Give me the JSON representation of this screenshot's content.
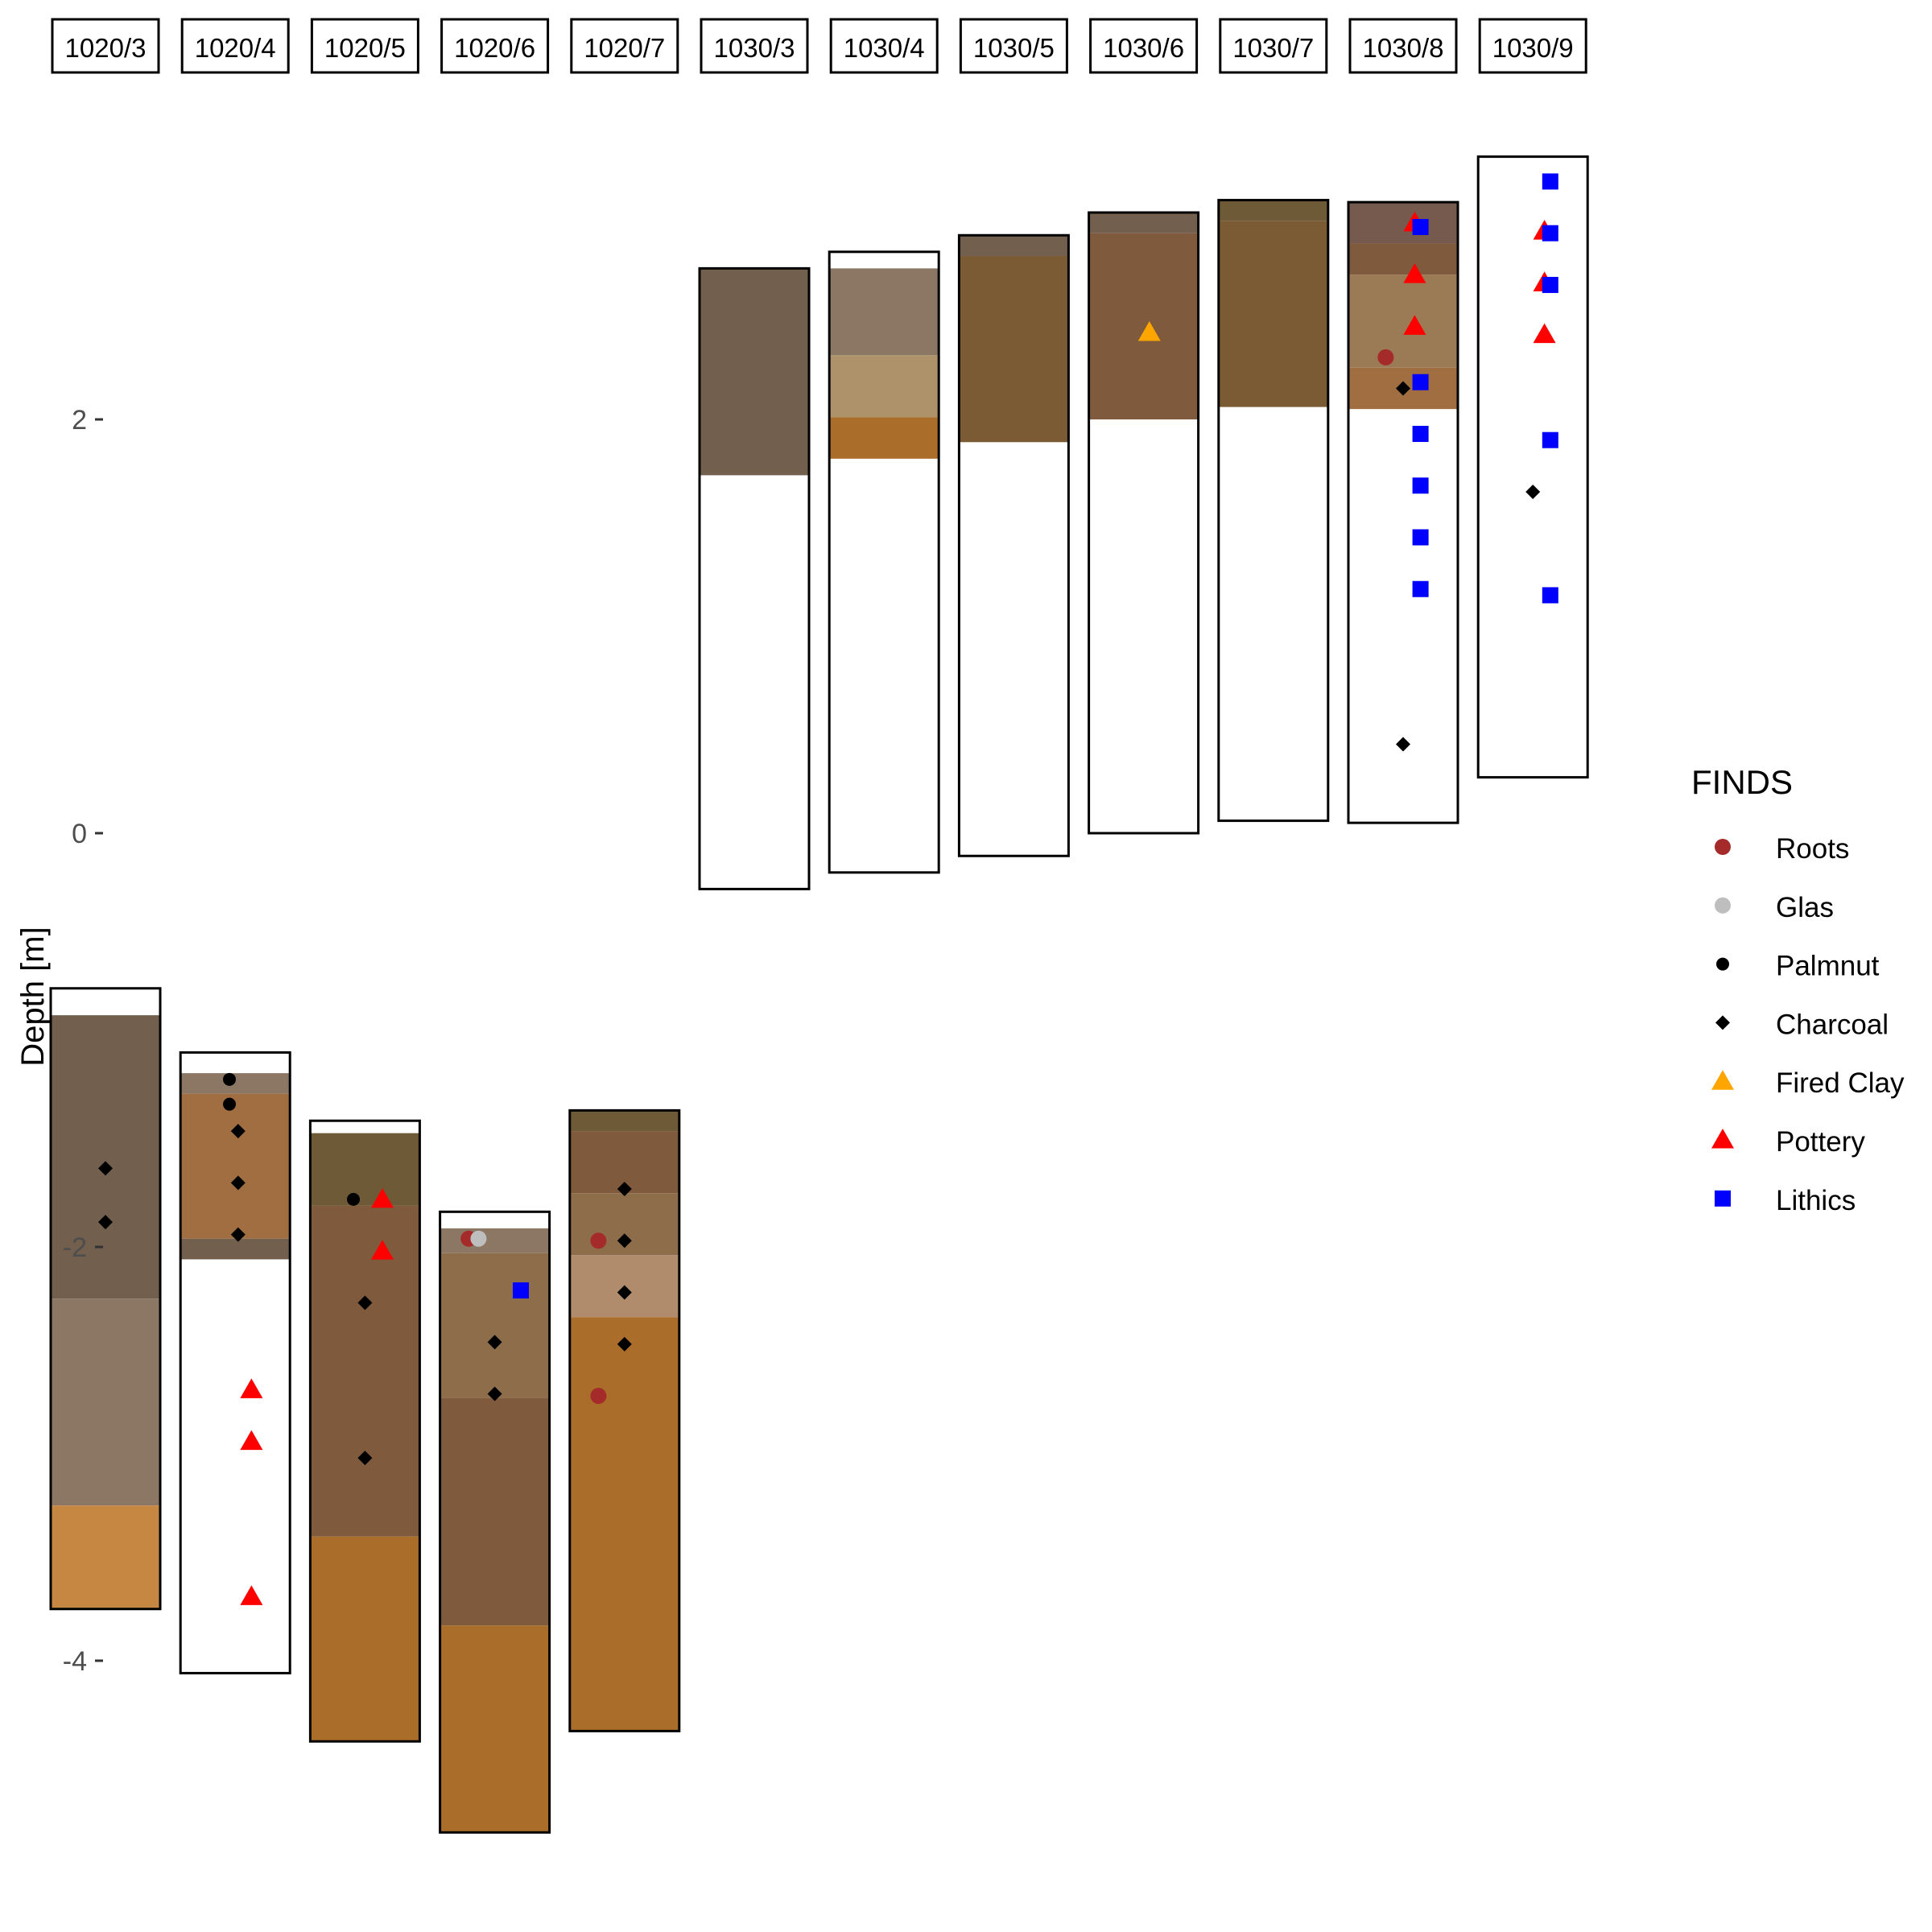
{
  "chart_data": {
    "type": "stratigraphic-column",
    "title": "",
    "xlabel": "",
    "ylabel": "Depth [m]",
    "ylim": [
      -5.1,
      3.6
    ],
    "yticks": [
      2,
      0,
      -2,
      -4
    ],
    "grid": false,
    "legend_position": "right",
    "colors": {
      "Roots": "#a52a2a",
      "Glas": "#bebebe",
      "Palmnut": "#000000",
      "Charcoal": "#000000",
      "Fired Clay": "#ffa500",
      "Pottery": "#ff0000",
      "Lithics": "#0000ff"
    },
    "legend": {
      "title": "FINDS",
      "items": [
        {
          "label": "Roots",
          "shape": "circle"
        },
        {
          "label": "Glas",
          "shape": "circle"
        },
        {
          "label": "Palmnut",
          "shape": "dot"
        },
        {
          "label": "Charcoal",
          "shape": "diamond"
        },
        {
          "label": "Fired Clay",
          "shape": "triangle"
        },
        {
          "label": "Pottery",
          "shape": "triangle"
        },
        {
          "label": "Lithics",
          "shape": "square"
        }
      ]
    },
    "profiles": [
      {
        "name": "1020/3",
        "top": -0.75,
        "bottom": -3.75,
        "layers": [
          {
            "from": -0.88,
            "to": -2.25,
            "color": "#725f4d"
          },
          {
            "from": -2.25,
            "to": -3.25,
            "color": "#8b7764"
          },
          {
            "from": -3.25,
            "to": -3.75,
            "color": "#c68742"
          }
        ],
        "finds": [
          {
            "type": "Charcoal",
            "depth": -1.62,
            "offset": 0
          },
          {
            "type": "Charcoal",
            "depth": -1.88,
            "offset": 0
          }
        ]
      },
      {
        "name": "1020/4",
        "top": -1.06,
        "bottom": -4.06,
        "layers": [
          {
            "from": -1.16,
            "to": -1.26,
            "color": "#8b7764"
          },
          {
            "from": -1.26,
            "to": -1.96,
            "color": "#a06e40"
          },
          {
            "from": -1.96,
            "to": -2.06,
            "color": "#725f4d"
          }
        ],
        "finds": [
          {
            "type": "Palmnut",
            "depth": -1.19,
            "offset": -0.1
          },
          {
            "type": "Palmnut",
            "depth": -1.31,
            "offset": -0.1
          },
          {
            "type": "Charcoal",
            "depth": -1.44,
            "offset": 0.05
          },
          {
            "type": "Charcoal",
            "depth": -1.69,
            "offset": 0.05
          },
          {
            "type": "Charcoal",
            "depth": -1.94,
            "offset": 0.05
          },
          {
            "type": "Pottery",
            "depth": -2.69,
            "offset": 0.28
          },
          {
            "type": "Pottery",
            "depth": -2.94,
            "offset": 0.28
          },
          {
            "type": "Pottery",
            "depth": -3.69,
            "offset": 0.28
          }
        ]
      },
      {
        "name": "1020/5",
        "top": -1.39,
        "bottom": -4.39,
        "layers": [
          {
            "from": -1.45,
            "to": -1.8,
            "color": "#6e5a36"
          },
          {
            "from": -1.8,
            "to": -3.4,
            "color": "#7f5a3c"
          },
          {
            "from": -3.4,
            "to": -4.39,
            "color": "#aa6e2a"
          }
        ],
        "finds": [
          {
            "type": "Palmnut",
            "depth": -1.77,
            "offset": -0.2
          },
          {
            "type": "Pottery",
            "depth": -1.77,
            "offset": 0.3
          },
          {
            "type": "Pottery",
            "depth": -2.02,
            "offset": 0.3
          },
          {
            "type": "Charcoal",
            "depth": -2.27,
            "offset": 0
          },
          {
            "type": "Charcoal",
            "depth": -3.02,
            "offset": 0
          }
        ]
      },
      {
        "name": "1020/6",
        "top": -1.83,
        "bottom": -4.83,
        "layers": [
          {
            "from": -1.91,
            "to": -2.03,
            "color": "#8b7764"
          },
          {
            "from": -2.03,
            "to": -2.73,
            "color": "#8e6e4a"
          },
          {
            "from": -2.73,
            "to": -3.83,
            "color": "#7f5a3c"
          },
          {
            "from": -3.83,
            "to": -4.83,
            "color": "#aa6e2a"
          }
        ],
        "finds": [
          {
            "type": "Roots",
            "depth": -1.96,
            "offset": -0.45
          },
          {
            "type": "Glas",
            "depth": -1.96,
            "offset": -0.28
          },
          {
            "type": "Lithics",
            "depth": -2.21,
            "offset": 0.45
          },
          {
            "type": "Charcoal",
            "depth": -2.46,
            "offset": 0
          },
          {
            "type": "Charcoal",
            "depth": -2.71,
            "offset": 0
          }
        ]
      },
      {
        "name": "1020/7",
        "top": -1.34,
        "bottom": -4.34,
        "layers": [
          {
            "from": -1.34,
            "to": -1.44,
            "color": "#6e5a36"
          },
          {
            "from": -1.44,
            "to": -1.74,
            "color": "#7f5a3c"
          },
          {
            "from": -1.74,
            "to": -2.04,
            "color": "#8e6e4a"
          },
          {
            "from": -2.04,
            "to": -2.34,
            "color": "#b08b6c"
          },
          {
            "from": -2.34,
            "to": -4.34,
            "color": "#aa6e2a"
          }
        ],
        "finds": [
          {
            "type": "Charcoal",
            "depth": -1.72,
            "offset": 0
          },
          {
            "type": "Roots",
            "depth": -1.97,
            "offset": -0.45
          },
          {
            "type": "Charcoal",
            "depth": -1.97,
            "offset": 0
          },
          {
            "type": "Charcoal",
            "depth": -2.22,
            "offset": 0
          },
          {
            "type": "Charcoal",
            "depth": -2.47,
            "offset": 0
          },
          {
            "type": "Roots",
            "depth": -2.72,
            "offset": -0.45
          }
        ]
      },
      {
        "name": "1030/3",
        "top": 2.73,
        "bottom": -0.27,
        "layers": [
          {
            "from": 2.73,
            "to": 1.73,
            "color": "#725f4d"
          }
        ],
        "finds": []
      },
      {
        "name": "1030/4",
        "top": 2.81,
        "bottom": -0.19,
        "layers": [
          {
            "from": 2.73,
            "to": 2.31,
            "color": "#8b7764"
          },
          {
            "from": 2.31,
            "to": 2.01,
            "color": "#ae926a"
          },
          {
            "from": 2.01,
            "to": 1.81,
            "color": "#aa6e2a"
          }
        ],
        "finds": []
      },
      {
        "name": "1030/5",
        "top": 2.89,
        "bottom": -0.11,
        "layers": [
          {
            "from": 2.89,
            "to": 2.79,
            "color": "#725f4d"
          },
          {
            "from": 2.79,
            "to": 1.89,
            "color": "#7b5b33"
          }
        ],
        "finds": []
      },
      {
        "name": "1030/6",
        "top": 3.0,
        "bottom": 0.0,
        "layers": [
          {
            "from": 3.0,
            "to": 2.9,
            "color": "#725f4d"
          },
          {
            "from": 2.9,
            "to": 2.0,
            "color": "#7f5a3c"
          }
        ],
        "finds": [
          {
            "type": "Fired Clay",
            "depth": 2.42,
            "offset": 0.1
          }
        ]
      },
      {
        "name": "1030/7",
        "top": 3.06,
        "bottom": 0.06,
        "layers": [
          {
            "from": 3.06,
            "to": 2.96,
            "color": "#6e5a36"
          },
          {
            "from": 2.96,
            "to": 2.06,
            "color": "#7b5b33"
          }
        ],
        "finds": []
      },
      {
        "name": "1030/8",
        "top": 3.05,
        "bottom": 0.05,
        "layers": [
          {
            "from": 3.05,
            "to": 2.85,
            "color": "#765a4e"
          },
          {
            "from": 2.85,
            "to": 2.7,
            "color": "#7f5a3c"
          },
          {
            "from": 2.7,
            "to": 2.25,
            "color": "#9b7a56"
          },
          {
            "from": 2.25,
            "to": 2.05,
            "color": "#a06e40"
          }
        ],
        "finds": [
          {
            "type": "Pottery",
            "depth": 2.95,
            "offset": 0.2
          },
          {
            "type": "Lithics",
            "depth": 2.93,
            "offset": 0.3
          },
          {
            "type": "Pottery",
            "depth": 2.7,
            "offset": 0.2
          },
          {
            "type": "Pottery",
            "depth": 2.45,
            "offset": 0.2
          },
          {
            "type": "Roots",
            "depth": 2.3,
            "offset": -0.3
          },
          {
            "type": "Lithics",
            "depth": 2.18,
            "offset": 0.3
          },
          {
            "type": "Charcoal",
            "depth": 2.15,
            "offset": 0
          },
          {
            "type": "Lithics",
            "depth": 1.93,
            "offset": 0.3
          },
          {
            "type": "Lithics",
            "depth": 1.68,
            "offset": 0.3
          },
          {
            "type": "Lithics",
            "depth": 1.43,
            "offset": 0.3
          },
          {
            "type": "Lithics",
            "depth": 1.18,
            "offset": 0.3
          },
          {
            "type": "Charcoal",
            "depth": 0.43,
            "offset": 0
          }
        ]
      },
      {
        "name": "1030/9",
        "top": 3.27,
        "bottom": 0.27,
        "layers": [],
        "finds": [
          {
            "type": "Lithics",
            "depth": 3.15,
            "offset": 0.3
          },
          {
            "type": "Pottery",
            "depth": 2.91,
            "offset": 0.2
          },
          {
            "type": "Lithics",
            "depth": 2.9,
            "offset": 0.3
          },
          {
            "type": "Pottery",
            "depth": 2.66,
            "offset": 0.2
          },
          {
            "type": "Lithics",
            "depth": 2.65,
            "offset": 0.3
          },
          {
            "type": "Pottery",
            "depth": 2.41,
            "offset": 0.2
          },
          {
            "type": "Lithics",
            "depth": 1.9,
            "offset": 0.3
          },
          {
            "type": "Charcoal",
            "depth": 1.65,
            "offset": 0
          },
          {
            "type": "Lithics",
            "depth": 1.15,
            "offset": 0.3
          }
        ]
      }
    ]
  }
}
